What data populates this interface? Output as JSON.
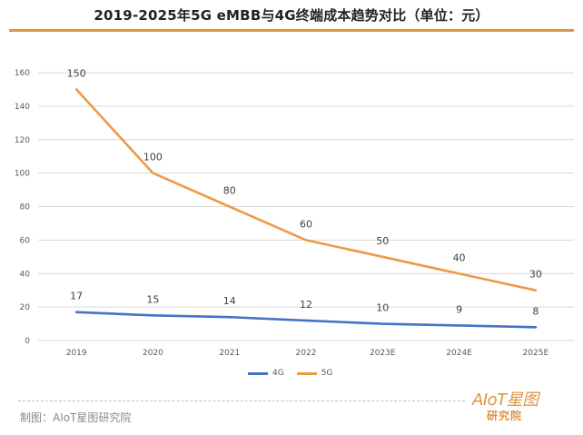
{
  "title": "2019-2025年5G eMBB与4G终端成本趋势对比（单位：元）",
  "colors": {
    "accent": "#e0953f",
    "series_4g": "#4472c4",
    "series_5g": "#ed9a47",
    "grid": "#d9d9d9",
    "axis_text": "#595959"
  },
  "chart_data": {
    "type": "line",
    "title": "2019-2025年5G eMBB与4G终端成本趋势对比（单位：元）",
    "categories": [
      "2019",
      "2020",
      "2021",
      "2022",
      "2023E",
      "2024E",
      "2025E"
    ],
    "ylim": [
      0,
      160
    ],
    "yticks": [
      0,
      20,
      40,
      60,
      80,
      100,
      120,
      140,
      160
    ],
    "grid": true,
    "legend_position": "bottom",
    "series": [
      {
        "name": "4G",
        "values": [
          17,
          15,
          14,
          12,
          10,
          9,
          8
        ],
        "color": "#4472c4"
      },
      {
        "name": "5G",
        "values": [
          150,
          100,
          80,
          60,
          50,
          40,
          30
        ],
        "color": "#ed9a47"
      }
    ]
  },
  "source": "制图：AIoT星图研究院",
  "watermark": {
    "brand": "AIoT星图",
    "sub": "研究院"
  }
}
